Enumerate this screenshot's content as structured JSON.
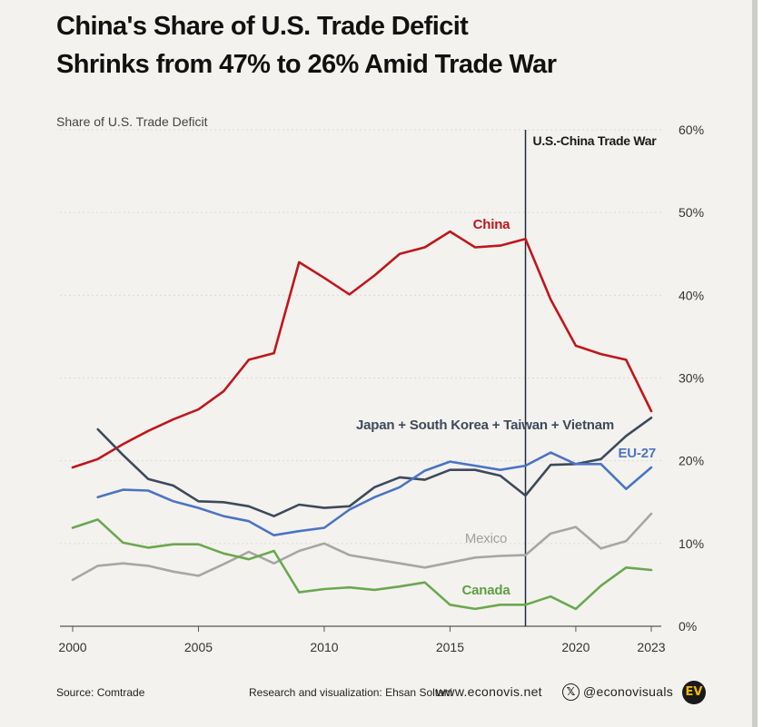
{
  "title_line1": "China's Share of U.S. Trade Deficit",
  "title_line2": "Shrinks from 47% to 26% Amid Trade War",
  "footer": {
    "source": "Source: Comtrade",
    "credit": "Research and visualization: Ehsan Soltani",
    "site": "www.econovis.net",
    "x_icon": "x-logo-icon",
    "x_glyph": "𝕏",
    "handle": "@econovisuals",
    "logo": "EV"
  },
  "chart_data": {
    "type": "line",
    "ylabel": "Share of U.S. Trade Deficit",
    "xlim": [
      2000,
      2023
    ],
    "ylim": [
      0,
      60
    ],
    "x_ticks": [
      "2000",
      "2005",
      "2010",
      "2015",
      "2020",
      "2023"
    ],
    "y_ticks": [
      "0%",
      "10%",
      "20%",
      "30%",
      "40%",
      "50%",
      "60%"
    ],
    "grid": true,
    "annotation": {
      "x": 2018,
      "label": "U.S.-China Trade War"
    },
    "series": [
      {
        "name": "China",
        "color": "#c0161c",
        "x": [
          2000,
          2001,
          2002,
          2003,
          2004,
          2005,
          2006,
          2007,
          2008,
          2009,
          2010,
          2011,
          2012,
          2013,
          2014,
          2015,
          2016,
          2017,
          2018,
          2019,
          2020,
          2021,
          2022,
          2023
        ],
        "values": [
          19.2,
          20.2,
          22.0,
          23.6,
          25.0,
          26.2,
          28.4,
          32.2,
          33.0,
          44.0,
          42.1,
          40.1,
          42.4,
          45.0,
          45.8,
          47.7,
          45.8,
          46.0,
          46.8,
          39.5,
          33.9,
          32.9,
          32.2,
          26.0
        ]
      },
      {
        "name": "Japan + South Korea + Taiwan + Vietnam",
        "color": "#3d4a5c",
        "x": [
          2001,
          2002,
          2003,
          2004,
          2005,
          2006,
          2007,
          2008,
          2009,
          2010,
          2011,
          2012,
          2013,
          2014,
          2015,
          2016,
          2017,
          2018,
          2019,
          2020,
          2021,
          2022,
          2023
        ],
        "values": [
          23.8,
          20.7,
          17.8,
          17.0,
          15.1,
          15.0,
          14.5,
          13.3,
          14.7,
          14.3,
          14.5,
          16.8,
          18.0,
          17.7,
          18.9,
          18.9,
          18.2,
          15.8,
          19.5,
          19.6,
          20.2,
          23.0,
          25.2
        ]
      },
      {
        "name": "EU-27",
        "color": "#4a74c4",
        "x": [
          2001,
          2002,
          2003,
          2004,
          2005,
          2006,
          2007,
          2008,
          2009,
          2010,
          2011,
          2012,
          2013,
          2014,
          2015,
          2016,
          2017,
          2018,
          2019,
          2020,
          2021,
          2022,
          2023
        ],
        "values": [
          15.6,
          16.5,
          16.4,
          15.1,
          14.3,
          13.3,
          12.7,
          11.0,
          11.5,
          11.9,
          14.1,
          15.6,
          16.8,
          18.8,
          19.9,
          19.4,
          18.9,
          19.4,
          21.0,
          19.6,
          19.6,
          16.6,
          19.2
        ]
      },
      {
        "name": "Mexico",
        "color": "#a6a6a6",
        "x": [
          2000,
          2001,
          2002,
          2003,
          2004,
          2005,
          2006,
          2007,
          2008,
          2009,
          2010,
          2011,
          2012,
          2013,
          2014,
          2015,
          2016,
          2017,
          2018,
          2019,
          2020,
          2021,
          2022,
          2023
        ],
        "values": [
          5.6,
          7.3,
          7.6,
          7.3,
          6.6,
          6.1,
          7.5,
          9.0,
          7.6,
          9.1,
          10.0,
          8.6,
          8.1,
          7.6,
          7.1,
          7.7,
          8.3,
          8.5,
          8.6,
          11.2,
          12.0,
          9.4,
          10.3,
          13.6
        ]
      },
      {
        "name": "Canada",
        "color": "#6aa84f",
        "x": [
          2000,
          2001,
          2002,
          2003,
          2004,
          2005,
          2006,
          2007,
          2008,
          2009,
          2010,
          2011,
          2012,
          2013,
          2014,
          2015,
          2016,
          2017,
          2018,
          2019,
          2020,
          2021,
          2022,
          2023
        ],
        "values": [
          11.9,
          12.9,
          10.1,
          9.5,
          9.9,
          9.9,
          8.8,
          8.1,
          9.1,
          4.1,
          4.5,
          4.7,
          4.4,
          4.8,
          5.3,
          2.6,
          2.1,
          2.6,
          2.6,
          3.6,
          2.1,
          4.9,
          7.1,
          6.8
        ]
      }
    ]
  }
}
